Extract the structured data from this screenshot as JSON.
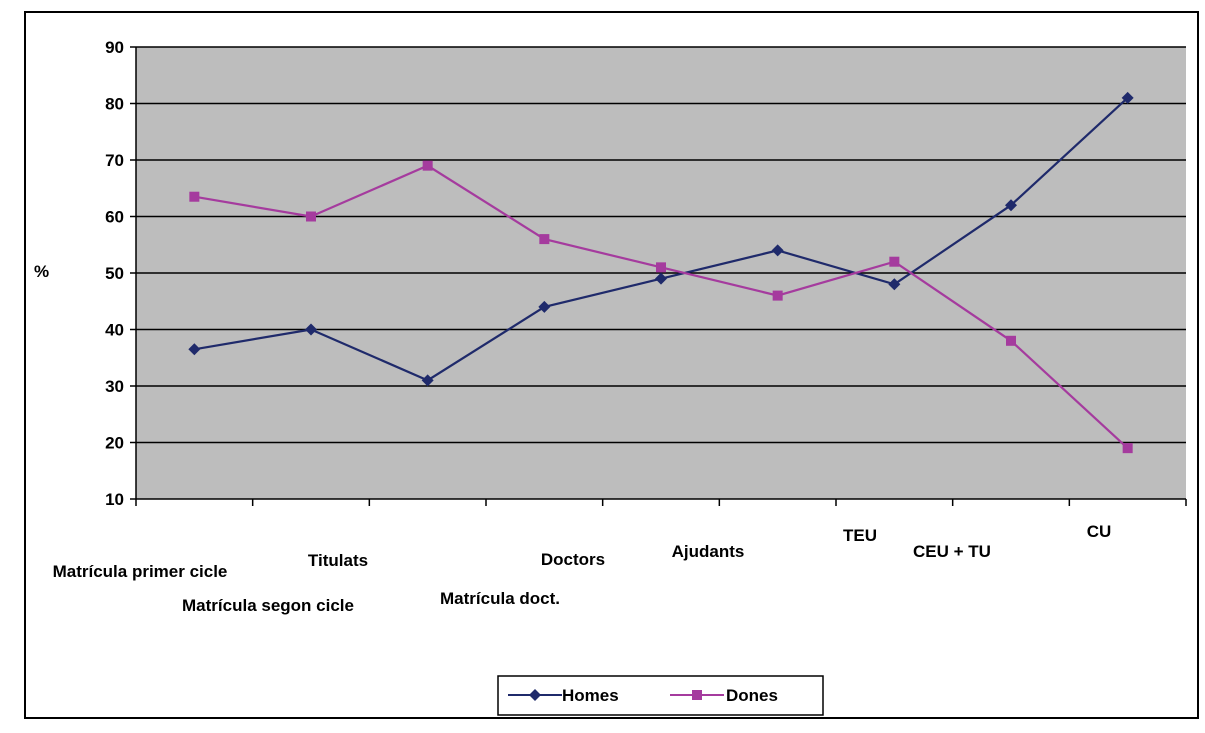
{
  "chart_data": {
    "type": "line",
    "title": "",
    "xlabel": "",
    "ylabel": "%",
    "ylim": [
      10,
      90
    ],
    "yticks": [
      10,
      20,
      30,
      40,
      50,
      60,
      70,
      80,
      90
    ],
    "grid": true,
    "legend_position": "bottom-center",
    "categories": [
      "Matrícula primer cicle",
      "Titulats",
      "Matrícula segon cicle",
      "Doctors",
      "Matrícula doct.",
      "Ajudants",
      "TEU",
      "CEU + TU",
      "CU"
    ],
    "series": [
      {
        "name": "Homes",
        "color": "#1f2a6b",
        "marker": "diamond",
        "values": [
          36.5,
          40,
          31,
          44,
          49,
          54,
          48,
          62,
          81
        ]
      },
      {
        "name": "Dones",
        "color": "#a53b9e",
        "marker": "square",
        "values": [
          63.5,
          60,
          69,
          56,
          51,
          46,
          52,
          38,
          19
        ]
      }
    ],
    "plot_background": "#bdbdbd",
    "gridline_color": "#000000"
  }
}
